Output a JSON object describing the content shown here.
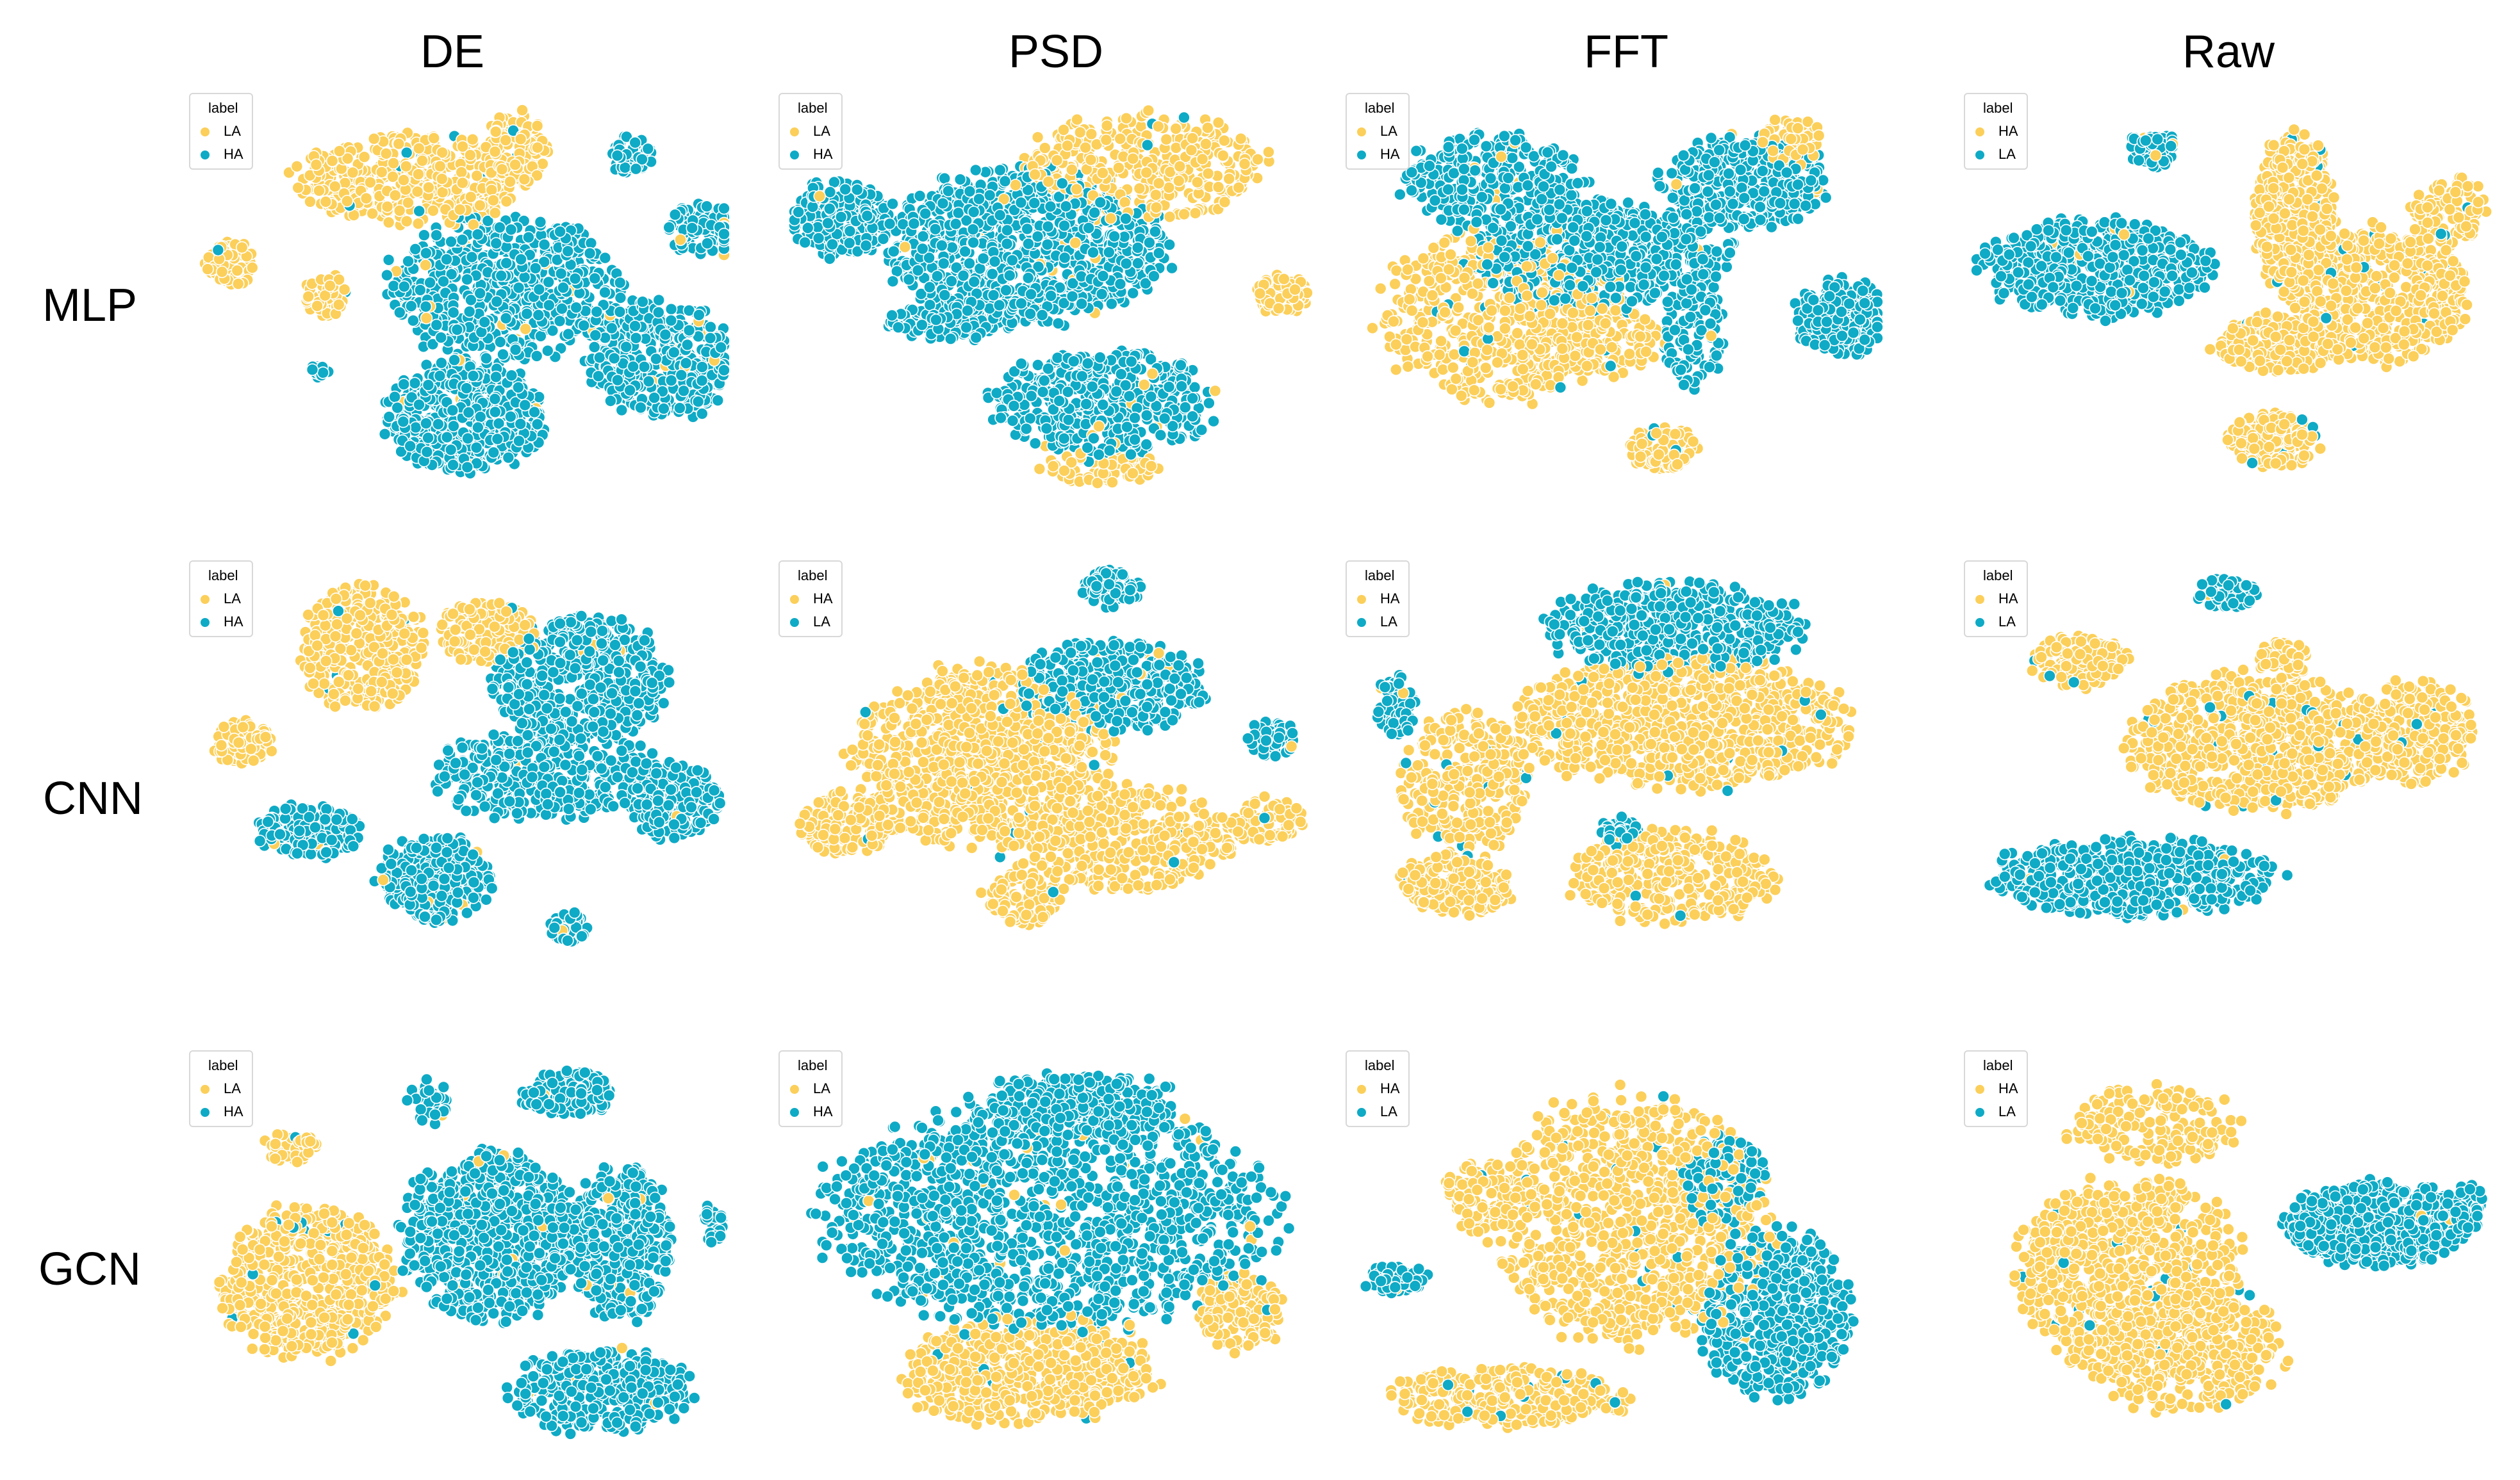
{
  "colors": {
    "yellow": "#FBCF5A",
    "teal": "#0FAAC5",
    "edge": "#ffffff"
  },
  "column_titles": [
    "DE",
    "PSD",
    "FFT",
    "Raw"
  ],
  "row_titles": [
    "MLP",
    "CNN",
    "GCN"
  ],
  "chart_data": [
    {
      "type": "scatter",
      "title": "MLP / DE",
      "legend": {
        "title": "label",
        "entries": [
          "LA",
          "HA"
        ],
        "colors": [
          "#FBCF5A",
          "#0FAAC5"
        ],
        "placement": "top-left"
      },
      "x_range": [
        0,
        100
      ],
      "y_range": [
        0,
        100
      ],
      "clusters": [
        {
          "label": "LA",
          "cx": 40,
          "cy": 20,
          "rx": 22,
          "ry": 12,
          "n": 420
        },
        {
          "label": "LA",
          "cx": 5,
          "cy": 42,
          "rx": 5,
          "ry": 6,
          "n": 70
        },
        {
          "label": "LA",
          "cx": 23,
          "cy": 50,
          "rx": 4,
          "ry": 6,
          "n": 50
        },
        {
          "label": "LA",
          "cx": 60,
          "cy": 12,
          "rx": 6,
          "ry": 10,
          "n": 110
        },
        {
          "label": "HA",
          "cx": 82,
          "cy": 14,
          "rx": 4,
          "ry": 5,
          "n": 55
        },
        {
          "label": "HA",
          "cx": 97,
          "cy": 33,
          "rx": 8,
          "ry": 7,
          "n": 130
        },
        {
          "label": "HA",
          "cx": 58,
          "cy": 48,
          "rx": 23,
          "ry": 19,
          "n": 600
        },
        {
          "label": "HA",
          "cx": 50,
          "cy": 82,
          "rx": 15,
          "ry": 15,
          "n": 480
        },
        {
          "label": "HA",
          "cx": 88,
          "cy": 67,
          "rx": 14,
          "ry": 15,
          "n": 420
        },
        {
          "label": "HA",
          "cx": 22,
          "cy": 70,
          "rx": 2,
          "ry": 2,
          "n": 12
        }
      ]
    },
    {
      "type": "scatter",
      "title": "MLP / PSD",
      "legend": {
        "title": "label",
        "entries": [
          "LA",
          "HA"
        ],
        "colors": [
          "#FBCF5A",
          "#0FAAC5"
        ],
        "placement": "top-left"
      },
      "x_range": [
        0,
        100
      ],
      "y_range": [
        0,
        100
      ],
      "clusters": [
        {
          "label": "LA",
          "cx": 68,
          "cy": 17,
          "rx": 24,
          "ry": 14,
          "n": 380
        },
        {
          "label": "LA",
          "cx": 95,
          "cy": 50,
          "rx": 6,
          "ry": 5,
          "n": 70
        },
        {
          "label": "LA",
          "cx": 60,
          "cy": 95,
          "rx": 12,
          "ry": 4,
          "n": 70
        },
        {
          "label": "HA",
          "cx": 9,
          "cy": 30,
          "rx": 10,
          "ry": 10,
          "n": 230
        },
        {
          "label": "HA",
          "cx": 45,
          "cy": 38,
          "rx": 27,
          "ry": 20,
          "n": 950
        },
        {
          "label": "HA",
          "cx": 60,
          "cy": 78,
          "rx": 22,
          "ry": 14,
          "n": 460
        },
        {
          "label": "HA",
          "cx": 30,
          "cy": 57,
          "rx": 12,
          "ry": 5,
          "n": 110
        }
      ]
    },
    {
      "type": "scatter",
      "title": "MLP / FFT",
      "legend": {
        "title": "label",
        "entries": [
          "LA",
          "HA"
        ],
        "colors": [
          "#FBCF5A",
          "#0FAAC5"
        ],
        "placement": "top-left"
      },
      "x_range": [
        0,
        100
      ],
      "y_range": [
        0,
        100
      ],
      "clusters": [
        {
          "label": "LA",
          "cx": 26,
          "cy": 56,
          "rx": 23,
          "ry": 22,
          "n": 560
        },
        {
          "label": "LA",
          "cx": 45,
          "cy": 62,
          "rx": 14,
          "ry": 10,
          "n": 160
        },
        {
          "label": "LA",
          "cx": 58,
          "cy": 90,
          "rx": 7,
          "ry": 6,
          "n": 90
        },
        {
          "label": "LA",
          "cx": 83,
          "cy": 10,
          "rx": 6,
          "ry": 7,
          "n": 70
        },
        {
          "label": "HA",
          "cx": 25,
          "cy": 20,
          "rx": 18,
          "ry": 12,
          "n": 320
        },
        {
          "label": "HA",
          "cx": 46,
          "cy": 40,
          "rx": 25,
          "ry": 14,
          "n": 620
        },
        {
          "label": "HA",
          "cx": 74,
          "cy": 21,
          "rx": 16,
          "ry": 12,
          "n": 400
        },
        {
          "label": "HA",
          "cx": 93,
          "cy": 56,
          "rx": 9,
          "ry": 10,
          "n": 220
        },
        {
          "label": "HA",
          "cx": 64,
          "cy": 60,
          "rx": 6,
          "ry": 14,
          "n": 110
        }
      ]
    },
    {
      "type": "scatter",
      "title": "MLP / Raw",
      "legend": {
        "title": "label",
        "entries": [
          "HA",
          "LA"
        ],
        "colors": [
          "#FBCF5A",
          "#0FAAC5"
        ],
        "placement": "top-left"
      },
      "x_range": [
        0,
        100
      ],
      "y_range": [
        0,
        100
      ],
      "clusters": [
        {
          "label": "LA",
          "cx": 34,
          "cy": 12,
          "rx": 5,
          "ry": 5,
          "n": 75
        },
        {
          "label": "LA",
          "cx": 23,
          "cy": 43,
          "rx": 22,
          "ry": 13,
          "n": 540
        },
        {
          "label": "HA",
          "cx": 62,
          "cy": 30,
          "rx": 8,
          "ry": 22,
          "n": 450
        },
        {
          "label": "HA",
          "cx": 78,
          "cy": 50,
          "rx": 18,
          "ry": 18,
          "n": 560
        },
        {
          "label": "HA",
          "cx": 58,
          "cy": 63,
          "rx": 12,
          "ry": 8,
          "n": 200
        },
        {
          "label": "HA",
          "cx": 58,
          "cy": 88,
          "rx": 9,
          "ry": 7,
          "n": 170
        },
        {
          "label": "HA",
          "cx": 92,
          "cy": 28,
          "rx": 7,
          "ry": 9,
          "n": 110
        }
      ]
    },
    {
      "type": "scatter",
      "title": "CNN / DE",
      "legend": {
        "title": "label",
        "entries": [
          "LA",
          "HA"
        ],
        "colors": [
          "#FBCF5A",
          "#0FAAC5"
        ],
        "placement": "top-left"
      },
      "x_range": [
        0,
        100
      ],
      "y_range": [
        0,
        100
      ],
      "clusters": [
        {
          "label": "LA",
          "cx": 30,
          "cy": 20,
          "rx": 12,
          "ry": 16,
          "n": 360
        },
        {
          "label": "LA",
          "cx": 54,
          "cy": 16,
          "rx": 9,
          "ry": 8,
          "n": 140
        },
        {
          "label": "LA",
          "cx": 7,
          "cy": 45,
          "rx": 6,
          "ry": 6,
          "n": 90
        },
        {
          "label": "HA",
          "cx": 72,
          "cy": 28,
          "rx": 17,
          "ry": 16,
          "n": 540
        },
        {
          "label": "HA",
          "cx": 66,
          "cy": 53,
          "rx": 22,
          "ry": 12,
          "n": 380
        },
        {
          "label": "HA",
          "cx": 90,
          "cy": 60,
          "rx": 9,
          "ry": 10,
          "n": 220
        },
        {
          "label": "HA",
          "cx": 20,
          "cy": 68,
          "rx": 10,
          "ry": 7,
          "n": 200
        },
        {
          "label": "HA",
          "cx": 44,
          "cy": 80,
          "rx": 11,
          "ry": 11,
          "n": 320
        },
        {
          "label": "HA",
          "cx": 70,
          "cy": 93,
          "rx": 4,
          "ry": 4,
          "n": 55
        }
      ]
    },
    {
      "type": "scatter",
      "title": "CNN / PSD",
      "legend": {
        "title": "label",
        "entries": [
          "HA",
          "LA"
        ],
        "colors": [
          "#FBCF5A",
          "#0FAAC5"
        ],
        "placement": "top-left"
      },
      "x_range": [
        0,
        100
      ],
      "y_range": [
        0,
        100
      ],
      "clusters": [
        {
          "label": "HA",
          "cx": 36,
          "cy": 48,
          "rx": 25,
          "ry": 23,
          "n": 850
        },
        {
          "label": "HA",
          "cx": 10,
          "cy": 66,
          "rx": 9,
          "ry": 8,
          "n": 170
        },
        {
          "label": "HA",
          "cx": 63,
          "cy": 70,
          "rx": 22,
          "ry": 14,
          "n": 420
        },
        {
          "label": "HA",
          "cx": 45,
          "cy": 85,
          "rx": 8,
          "ry": 7,
          "n": 90
        },
        {
          "label": "HA",
          "cx": 92,
          "cy": 65,
          "rx": 7,
          "ry": 6,
          "n": 70
        },
        {
          "label": "LA",
          "cx": 62,
          "cy": 30,
          "rx": 18,
          "ry": 12,
          "n": 380
        },
        {
          "label": "LA",
          "cx": 62,
          "cy": 5,
          "rx": 6,
          "ry": 5,
          "n": 80
        },
        {
          "label": "LA",
          "cx": 93,
          "cy": 44,
          "rx": 5,
          "ry": 5,
          "n": 50
        }
      ]
    },
    {
      "type": "scatter",
      "title": "CNN / FFT",
      "legend": {
        "title": "label",
        "entries": [
          "HA",
          "LA"
        ],
        "colors": [
          "#FBCF5A",
          "#0FAAC5"
        ],
        "placement": "top-left"
      },
      "x_range": [
        0,
        100
      ],
      "y_range": [
        0,
        100
      ],
      "clusters": [
        {
          "label": "HA",
          "cx": 62,
          "cy": 40,
          "rx": 32,
          "ry": 17,
          "n": 900
        },
        {
          "label": "HA",
          "cx": 20,
          "cy": 55,
          "rx": 13,
          "ry": 18,
          "n": 300
        },
        {
          "label": "HA",
          "cx": 18,
          "cy": 82,
          "rx": 11,
          "ry": 8,
          "n": 220
        },
        {
          "label": "HA",
          "cx": 60,
          "cy": 80,
          "rx": 20,
          "ry": 12,
          "n": 380
        },
        {
          "label": "LA",
          "cx": 60,
          "cy": 15,
          "rx": 25,
          "ry": 12,
          "n": 550
        },
        {
          "label": "LA",
          "cx": 6,
          "cy": 35,
          "rx": 4,
          "ry": 8,
          "n": 70
        },
        {
          "label": "LA",
          "cx": 50,
          "cy": 68,
          "rx": 4,
          "ry": 4,
          "n": 50
        }
      ]
    },
    {
      "type": "scatter",
      "title": "CNN / Raw",
      "legend": {
        "title": "label",
        "entries": [
          "HA",
          "LA"
        ],
        "colors": [
          "#FBCF5A",
          "#0FAAC5"
        ],
        "placement": "top-left"
      },
      "x_range": [
        0,
        100
      ],
      "y_range": [
        0,
        100
      ],
      "clusters": [
        {
          "label": "LA",
          "cx": 49,
          "cy": 6,
          "rx": 6,
          "ry": 4,
          "n": 80
        },
        {
          "label": "LA",
          "cx": 30,
          "cy": 80,
          "rx": 28,
          "ry": 10,
          "n": 560
        },
        {
          "label": "HA",
          "cx": 55,
          "cy": 45,
          "rx": 25,
          "ry": 18,
          "n": 820
        },
        {
          "label": "HA",
          "cx": 20,
          "cy": 24,
          "rx": 9,
          "ry": 7,
          "n": 170
        },
        {
          "label": "HA",
          "cx": 85,
          "cy": 42,
          "rx": 12,
          "ry": 13,
          "n": 300
        },
        {
          "label": "HA",
          "cx": 60,
          "cy": 23,
          "rx": 5,
          "ry": 5,
          "n": 60
        }
      ]
    },
    {
      "type": "scatter",
      "title": "GCN / DE",
      "legend": {
        "title": "label",
        "entries": [
          "LA",
          "HA"
        ],
        "colors": [
          "#FBCF5A",
          "#0FAAC5"
        ],
        "placement": "top-left"
      },
      "x_range": [
        0,
        100
      ],
      "y_range": [
        0,
        100
      ],
      "clusters": [
        {
          "label": "LA",
          "cx": 20,
          "cy": 57,
          "rx": 17,
          "ry": 20,
          "n": 620
        },
        {
          "label": "LA",
          "cx": 17,
          "cy": 22,
          "rx": 6,
          "ry": 4,
          "n": 50
        },
        {
          "label": "HA",
          "cx": 55,
          "cy": 45,
          "rx": 17,
          "ry": 22,
          "n": 750
        },
        {
          "label": "HA",
          "cx": 80,
          "cy": 47,
          "rx": 10,
          "ry": 20,
          "n": 380
        },
        {
          "label": "HA",
          "cx": 70,
          "cy": 8,
          "rx": 9,
          "ry": 6,
          "n": 140
        },
        {
          "label": "HA",
          "cx": 76,
          "cy": 85,
          "rx": 18,
          "ry": 11,
          "n": 350
        },
        {
          "label": "HA",
          "cx": 98,
          "cy": 42,
          "rx": 2,
          "ry": 6,
          "n": 30
        },
        {
          "label": "HA",
          "cx": 43,
          "cy": 10,
          "rx": 4,
          "ry": 6,
          "n": 30
        }
      ]
    },
    {
      "type": "scatter",
      "title": "GCN / PSD",
      "legend": {
        "title": "label",
        "entries": [
          "LA",
          "HA"
        ],
        "colors": [
          "#FBCF5A",
          "#0FAAC5"
        ],
        "placement": "top-left"
      },
      "x_range": [
        0,
        100
      ],
      "y_range": [
        0,
        100
      ],
      "clusters": [
        {
          "label": "HA",
          "cx": 50,
          "cy": 40,
          "rx": 45,
          "ry": 30,
          "n": 1400
        },
        {
          "label": "HA",
          "cx": 55,
          "cy": 10,
          "rx": 20,
          "ry": 8,
          "n": 260
        },
        {
          "label": "LA",
          "cx": 45,
          "cy": 80,
          "rx": 25,
          "ry": 14,
          "n": 550
        },
        {
          "label": "LA",
          "cx": 87,
          "cy": 65,
          "rx": 8,
          "ry": 10,
          "n": 140
        }
      ]
    },
    {
      "type": "scatter",
      "title": "GCN / FFT",
      "legend": {
        "title": "label",
        "entries": [
          "HA",
          "LA"
        ],
        "colors": [
          "#FBCF5A",
          "#0FAAC5"
        ],
        "placement": "top-left"
      },
      "x_range": [
        0,
        100
      ],
      "y_range": [
        0,
        100
      ],
      "clusters": [
        {
          "label": "HA",
          "cx": 52,
          "cy": 40,
          "rx": 27,
          "ry": 33,
          "n": 950
        },
        {
          "label": "HA",
          "cx": 28,
          "cy": 87,
          "rx": 24,
          "ry": 8,
          "n": 300
        },
        {
          "label": "HA",
          "cx": 22,
          "cy": 35,
          "rx": 7,
          "ry": 10,
          "n": 90
        },
        {
          "label": "LA",
          "cx": 80,
          "cy": 65,
          "rx": 15,
          "ry": 22,
          "n": 520
        },
        {
          "label": "LA",
          "cx": 6,
          "cy": 56,
          "rx": 6,
          "ry": 4,
          "n": 70
        },
        {
          "label": "LA",
          "cx": 70,
          "cy": 30,
          "rx": 8,
          "ry": 12,
          "n": 120
        }
      ]
    },
    {
      "type": "scatter",
      "title": "GCN / Raw",
      "legend": {
        "title": "label",
        "entries": [
          "HA",
          "LA"
        ],
        "colors": [
          "#FBCF5A",
          "#0FAAC5"
        ],
        "placement": "top-left"
      },
      "x_range": [
        0,
        100
      ],
      "y_range": [
        0,
        100
      ],
      "clusters": [
        {
          "label": "HA",
          "cx": 30,
          "cy": 55,
          "rx": 22,
          "ry": 25,
          "n": 800
        },
        {
          "label": "HA",
          "cx": 40,
          "cy": 74,
          "rx": 20,
          "ry": 16,
          "n": 400
        },
        {
          "label": "HA",
          "cx": 35,
          "cy": 16,
          "rx": 18,
          "ry": 10,
          "n": 180
        },
        {
          "label": "LA",
          "cx": 78,
          "cy": 42,
          "rx": 18,
          "ry": 11,
          "n": 620
        },
        {
          "label": "LA",
          "cx": 95,
          "cy": 38,
          "rx": 4,
          "ry": 7,
          "n": 50
        }
      ]
    }
  ]
}
